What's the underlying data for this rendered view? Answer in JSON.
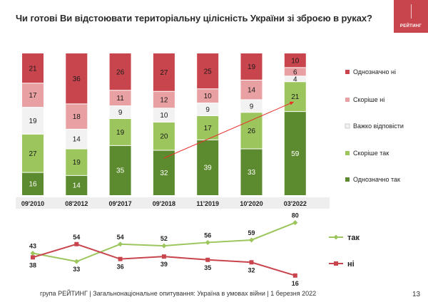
{
  "title": "Чи готові Ви відстоювати територіальну цілісність України зі зброєю в руках?",
  "logo": {
    "text": "РЕЙТИНГ",
    "color": "#c9454d"
  },
  "footer": "група РЕЙТИНГ | Загальнонаціональне опитування: Україна в умовах війни | 1 березня 2022",
  "page_number": "13",
  "chart_data": [
    {
      "type": "bar",
      "stacked": "100%",
      "categories": [
        "09'2010",
        "08'2012",
        "09'2017",
        "09'2018",
        "11'2019",
        "10'2020",
        "03'2022"
      ],
      "series": [
        {
          "name": "Однозначно так",
          "color": "#5c8a2e",
          "label_color": "#ffffff",
          "values": [
            16,
            14,
            35,
            32,
            39,
            33,
            59
          ]
        },
        {
          "name": "Скоріше так",
          "color": "#9cc65d",
          "label_color": "#1a1a1a",
          "values": [
            27,
            19,
            19,
            20,
            17,
            26,
            21
          ]
        },
        {
          "name": "Важко відповісти",
          "color": "#f2f2f2",
          "label_color": "#1a1a1a",
          "values": [
            19,
            14,
            9,
            10,
            9,
            9,
            4
          ]
        },
        {
          "name": "Скоріше ні",
          "color": "#e9a0a2",
          "label_color": "#1a1a1a",
          "values": [
            17,
            18,
            11,
            12,
            10,
            14,
            6
          ]
        },
        {
          "name": "Однозначно ні",
          "color": "#c9454d",
          "label_color": "#1a1a1a",
          "values": [
            21,
            36,
            26,
            27,
            25,
            19,
            10
          ]
        }
      ],
      "legend_position": "right",
      "trend_arrow": {
        "from_category": "09'2018",
        "to_category": "03'2022",
        "color": "#e8302a"
      }
    },
    {
      "type": "line",
      "categories": [
        "09'2010",
        "08'2012",
        "09'2017",
        "09'2018",
        "11'2019",
        "10'2020",
        "03'2022"
      ],
      "series": [
        {
          "name": "так",
          "color": "#9cc65d",
          "marker": "diamond",
          "values": [
            43,
            33,
            54,
            52,
            56,
            59,
            80
          ]
        },
        {
          "name": "ні",
          "color": "#c9454d",
          "marker": "square",
          "values": [
            38,
            54,
            36,
            39,
            35,
            32,
            16
          ]
        }
      ],
      "legend_position": "right"
    }
  ]
}
